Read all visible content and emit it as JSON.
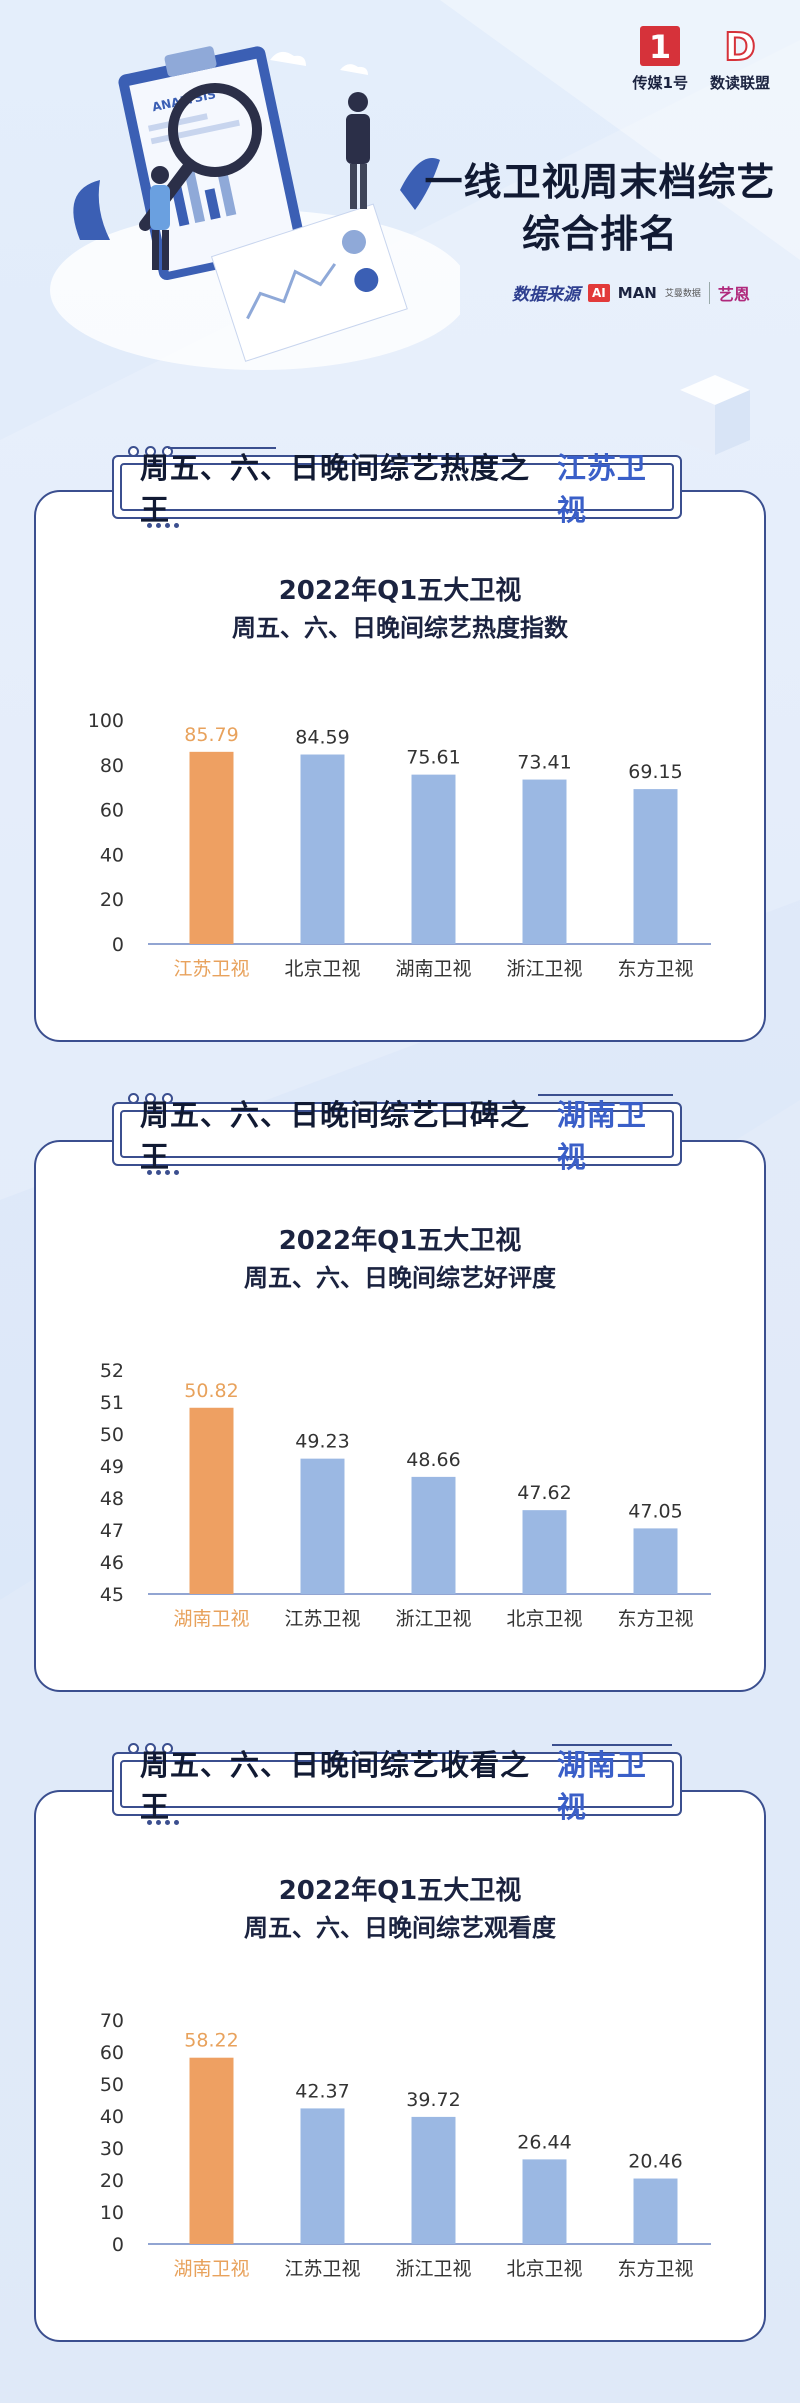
{
  "header": {
    "logos": [
      {
        "name": "传媒1号",
        "mark": "1",
        "color": "#d6323a"
      },
      {
        "name": "数读联盟",
        "mark": "D",
        "color": "#d6323a"
      }
    ],
    "title_line1": "一线卫视周末档综艺",
    "title_line2": "综合排名",
    "source_label": "数据来源",
    "source_ai": "AI",
    "source_man": "MAN",
    "source_man_sub": "艾曼数据",
    "source_yien": "艺恩",
    "illustration_word": "ANALYSIS"
  },
  "sections": [
    {
      "banner_text": "周五、六、日晚间综艺热度之王",
      "banner_highlight": "江苏卫视",
      "chart_title_1": "2022年Q1五大卫视",
      "chart_title_2": "周五、六、日晚间综艺热度指数"
    },
    {
      "banner_text": "周五、六、日晚间综艺口碑之王",
      "banner_highlight": "湖南卫视",
      "chart_title_1": "2022年Q1五大卫视",
      "chart_title_2": "周五、六、日晚间综艺好评度"
    },
    {
      "banner_text": "周五、六、日晚间综艺收看之王",
      "banner_highlight": "湖南卫视",
      "chart_title_1": "2022年Q1五大卫视",
      "chart_title_2": "周五、六、日晚间综艺观看度"
    }
  ],
  "colors": {
    "highlight_bar": "#eea062",
    "normal_bar": "#9bb8e3",
    "highlight_label": "#e8a25c",
    "normal_label": "#333333",
    "axis_text": "#333333"
  },
  "chart_data": [
    {
      "type": "bar",
      "title": "2022年Q1五大卫视 周五、六、日晚间综艺热度指数",
      "categories": [
        "江苏卫视",
        "北京卫视",
        "湖南卫视",
        "浙江卫视",
        "东方卫视"
      ],
      "values": [
        85.79,
        84.59,
        75.61,
        73.41,
        69.15
      ],
      "highlight_index": 0,
      "ylim": [
        0,
        100
      ],
      "yticks": [
        0,
        20,
        40,
        60,
        80,
        100
      ],
      "grid": false,
      "xlabel": "",
      "ylabel": ""
    },
    {
      "type": "bar",
      "title": "2022年Q1五大卫视 周五、六、日晚间综艺好评度",
      "categories": [
        "湖南卫视",
        "江苏卫视",
        "浙江卫视",
        "北京卫视",
        "东方卫视"
      ],
      "values": [
        50.82,
        49.23,
        48.66,
        47.62,
        47.05
      ],
      "highlight_index": 0,
      "ylim": [
        45,
        52
      ],
      "yticks": [
        45,
        46,
        47,
        48,
        49,
        50,
        51,
        52
      ],
      "grid": false,
      "xlabel": "",
      "ylabel": ""
    },
    {
      "type": "bar",
      "title": "2022年Q1五大卫视 周五、六、日晚间综艺观看度",
      "categories": [
        "湖南卫视",
        "江苏卫视",
        "浙江卫视",
        "北京卫视",
        "东方卫视"
      ],
      "values": [
        58.22,
        42.37,
        39.72,
        26.44,
        20.46
      ],
      "highlight_index": 0,
      "ylim": [
        0,
        70
      ],
      "yticks": [
        0,
        10,
        20,
        30,
        40,
        50,
        60,
        70
      ],
      "grid": false,
      "xlabel": "",
      "ylabel": ""
    }
  ]
}
